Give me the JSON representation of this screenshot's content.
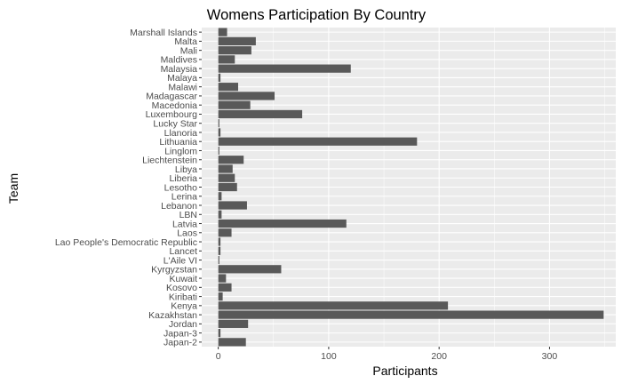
{
  "chart_data": {
    "type": "bar",
    "orientation": "horizontal",
    "title": "Womens Participation By Country",
    "xlabel": "Participants",
    "ylabel": "Team",
    "xlim": [
      -15,
      360
    ],
    "xticks": [
      0,
      100,
      200,
      300
    ],
    "grid": true,
    "categories": [
      "Marshall Islands",
      "Malta",
      "Mali",
      "Maldives",
      "Malaysia",
      "Malaya",
      "Malawi",
      "Madagascar",
      "Macedonia",
      "Luxembourg",
      "Lucky Star",
      "Llanoria",
      "Lithuania",
      "Linglom",
      "Liechtenstein",
      "Libya",
      "Liberia",
      "Lesotho",
      "Lerina",
      "Lebanon",
      "LBN",
      "Latvia",
      "Laos",
      "Lao People's Democratic Republic",
      "Lancet",
      "L'Aile VI",
      "Kyrgyzstan",
      "Kuwait",
      "Kosovo",
      "Kiribati",
      "Kenya",
      "Kazakhstan",
      "Jordan",
      "Japan-3",
      "Japan-2"
    ],
    "values": [
      8,
      34,
      30,
      15,
      120,
      2,
      18,
      51,
      29,
      76,
      1,
      2,
      180,
      1,
      23,
      13,
      15,
      17,
      3,
      26,
      3,
      116,
      12,
      2,
      2,
      1,
      57,
      7,
      12,
      4,
      208,
      349,
      27,
      2,
      25
    ],
    "bar_color": "#595959",
    "panel_color": "#ebebeb",
    "grid_color": "#ffffff"
  }
}
